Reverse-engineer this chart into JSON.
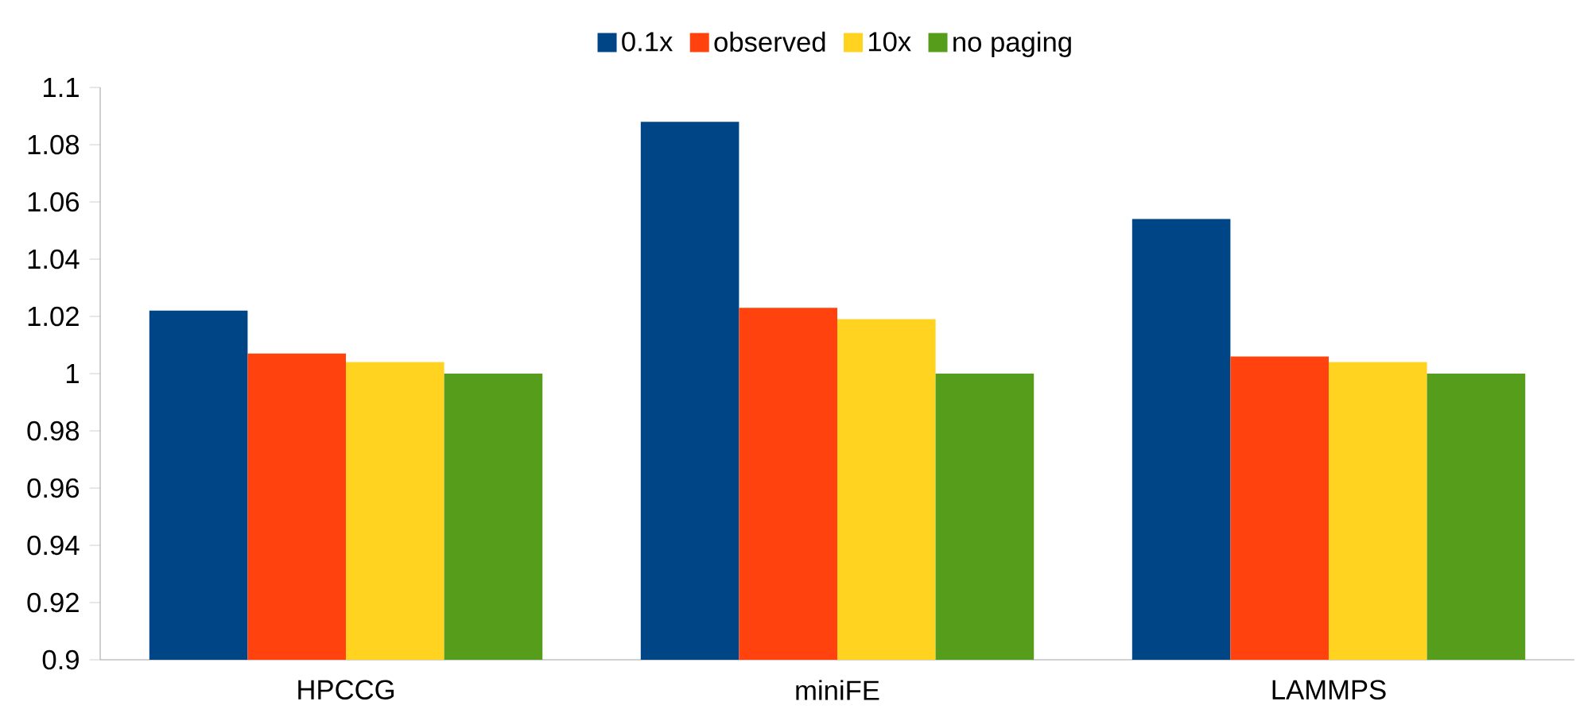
{
  "chart_data": {
    "type": "bar",
    "categories": [
      "HPCCG",
      "miniFE",
      "LAMMPS"
    ],
    "series": [
      {
        "name": "0.1x",
        "color": "#004586",
        "values": [
          1.022,
          1.088,
          1.054
        ]
      },
      {
        "name": "observed",
        "color": "#ff420e",
        "values": [
          1.007,
          1.023,
          1.006
        ]
      },
      {
        "name": "10x",
        "color": "#ffd320",
        "values": [
          1.004,
          1.019,
          1.004
        ]
      },
      {
        "name": "no paging",
        "color": "#579d1c",
        "values": [
          1.0,
          1.0,
          1.0
        ]
      }
    ],
    "ylim": [
      0.9,
      1.1
    ],
    "yticks": [
      0.9,
      0.92,
      0.94,
      0.96,
      0.98,
      1,
      1.02,
      1.04,
      1.06,
      1.08,
      1.1
    ],
    "legend": "top"
  }
}
